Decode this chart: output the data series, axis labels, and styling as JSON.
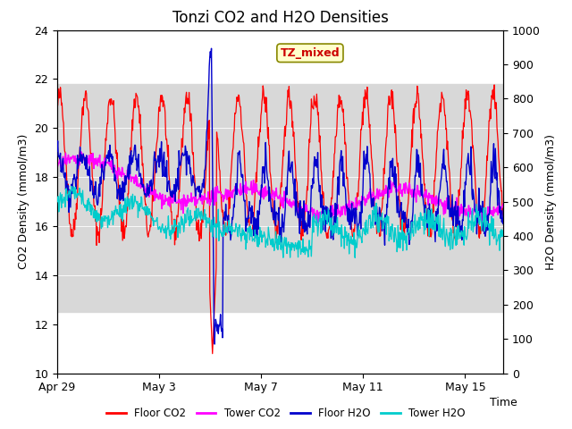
{
  "title": "Tonzi CO2 and H2O Densities",
  "xlabel": "Time",
  "ylabel_left": "CO2 Density (mmol/m3)",
  "ylabel_right": "H2O Density (mmol/m3)",
  "ylim_left": [
    10,
    24
  ],
  "ylim_right": [
    0,
    1000
  ],
  "yticks_left": [
    10,
    12,
    14,
    16,
    18,
    20,
    22,
    24
  ],
  "yticks_right": [
    0,
    100,
    200,
    300,
    400,
    500,
    600,
    700,
    800,
    900,
    1000
  ],
  "xtick_labels": [
    "Apr 29",
    "May 3",
    "May 7",
    "May 11",
    "May 15"
  ],
  "xtick_positions": [
    0,
    4,
    8,
    12,
    16
  ],
  "annotation_text": "TZ_mixed",
  "annotation_color": "#cc0000",
  "annotation_bg": "#ffffcc",
  "annotation_border": "#888800",
  "colors": {
    "floor_co2": "#ff0000",
    "tower_co2": "#ff00ff",
    "floor_h2o": "#0000cc",
    "tower_h2o": "#00cccc"
  },
  "legend_labels": [
    "Floor CO2",
    "Tower CO2",
    "Floor H2O",
    "Tower H2O"
  ],
  "background_color": "#ffffff",
  "shaded_region_color": "#d8d8d8",
  "shaded_co2_low": 12.5,
  "shaded_co2_high": 21.8,
  "title_fontsize": 12,
  "label_fontsize": 9,
  "tick_fontsize": 9,
  "num_days": 18,
  "xlim_end": 17.5,
  "seed": 42
}
